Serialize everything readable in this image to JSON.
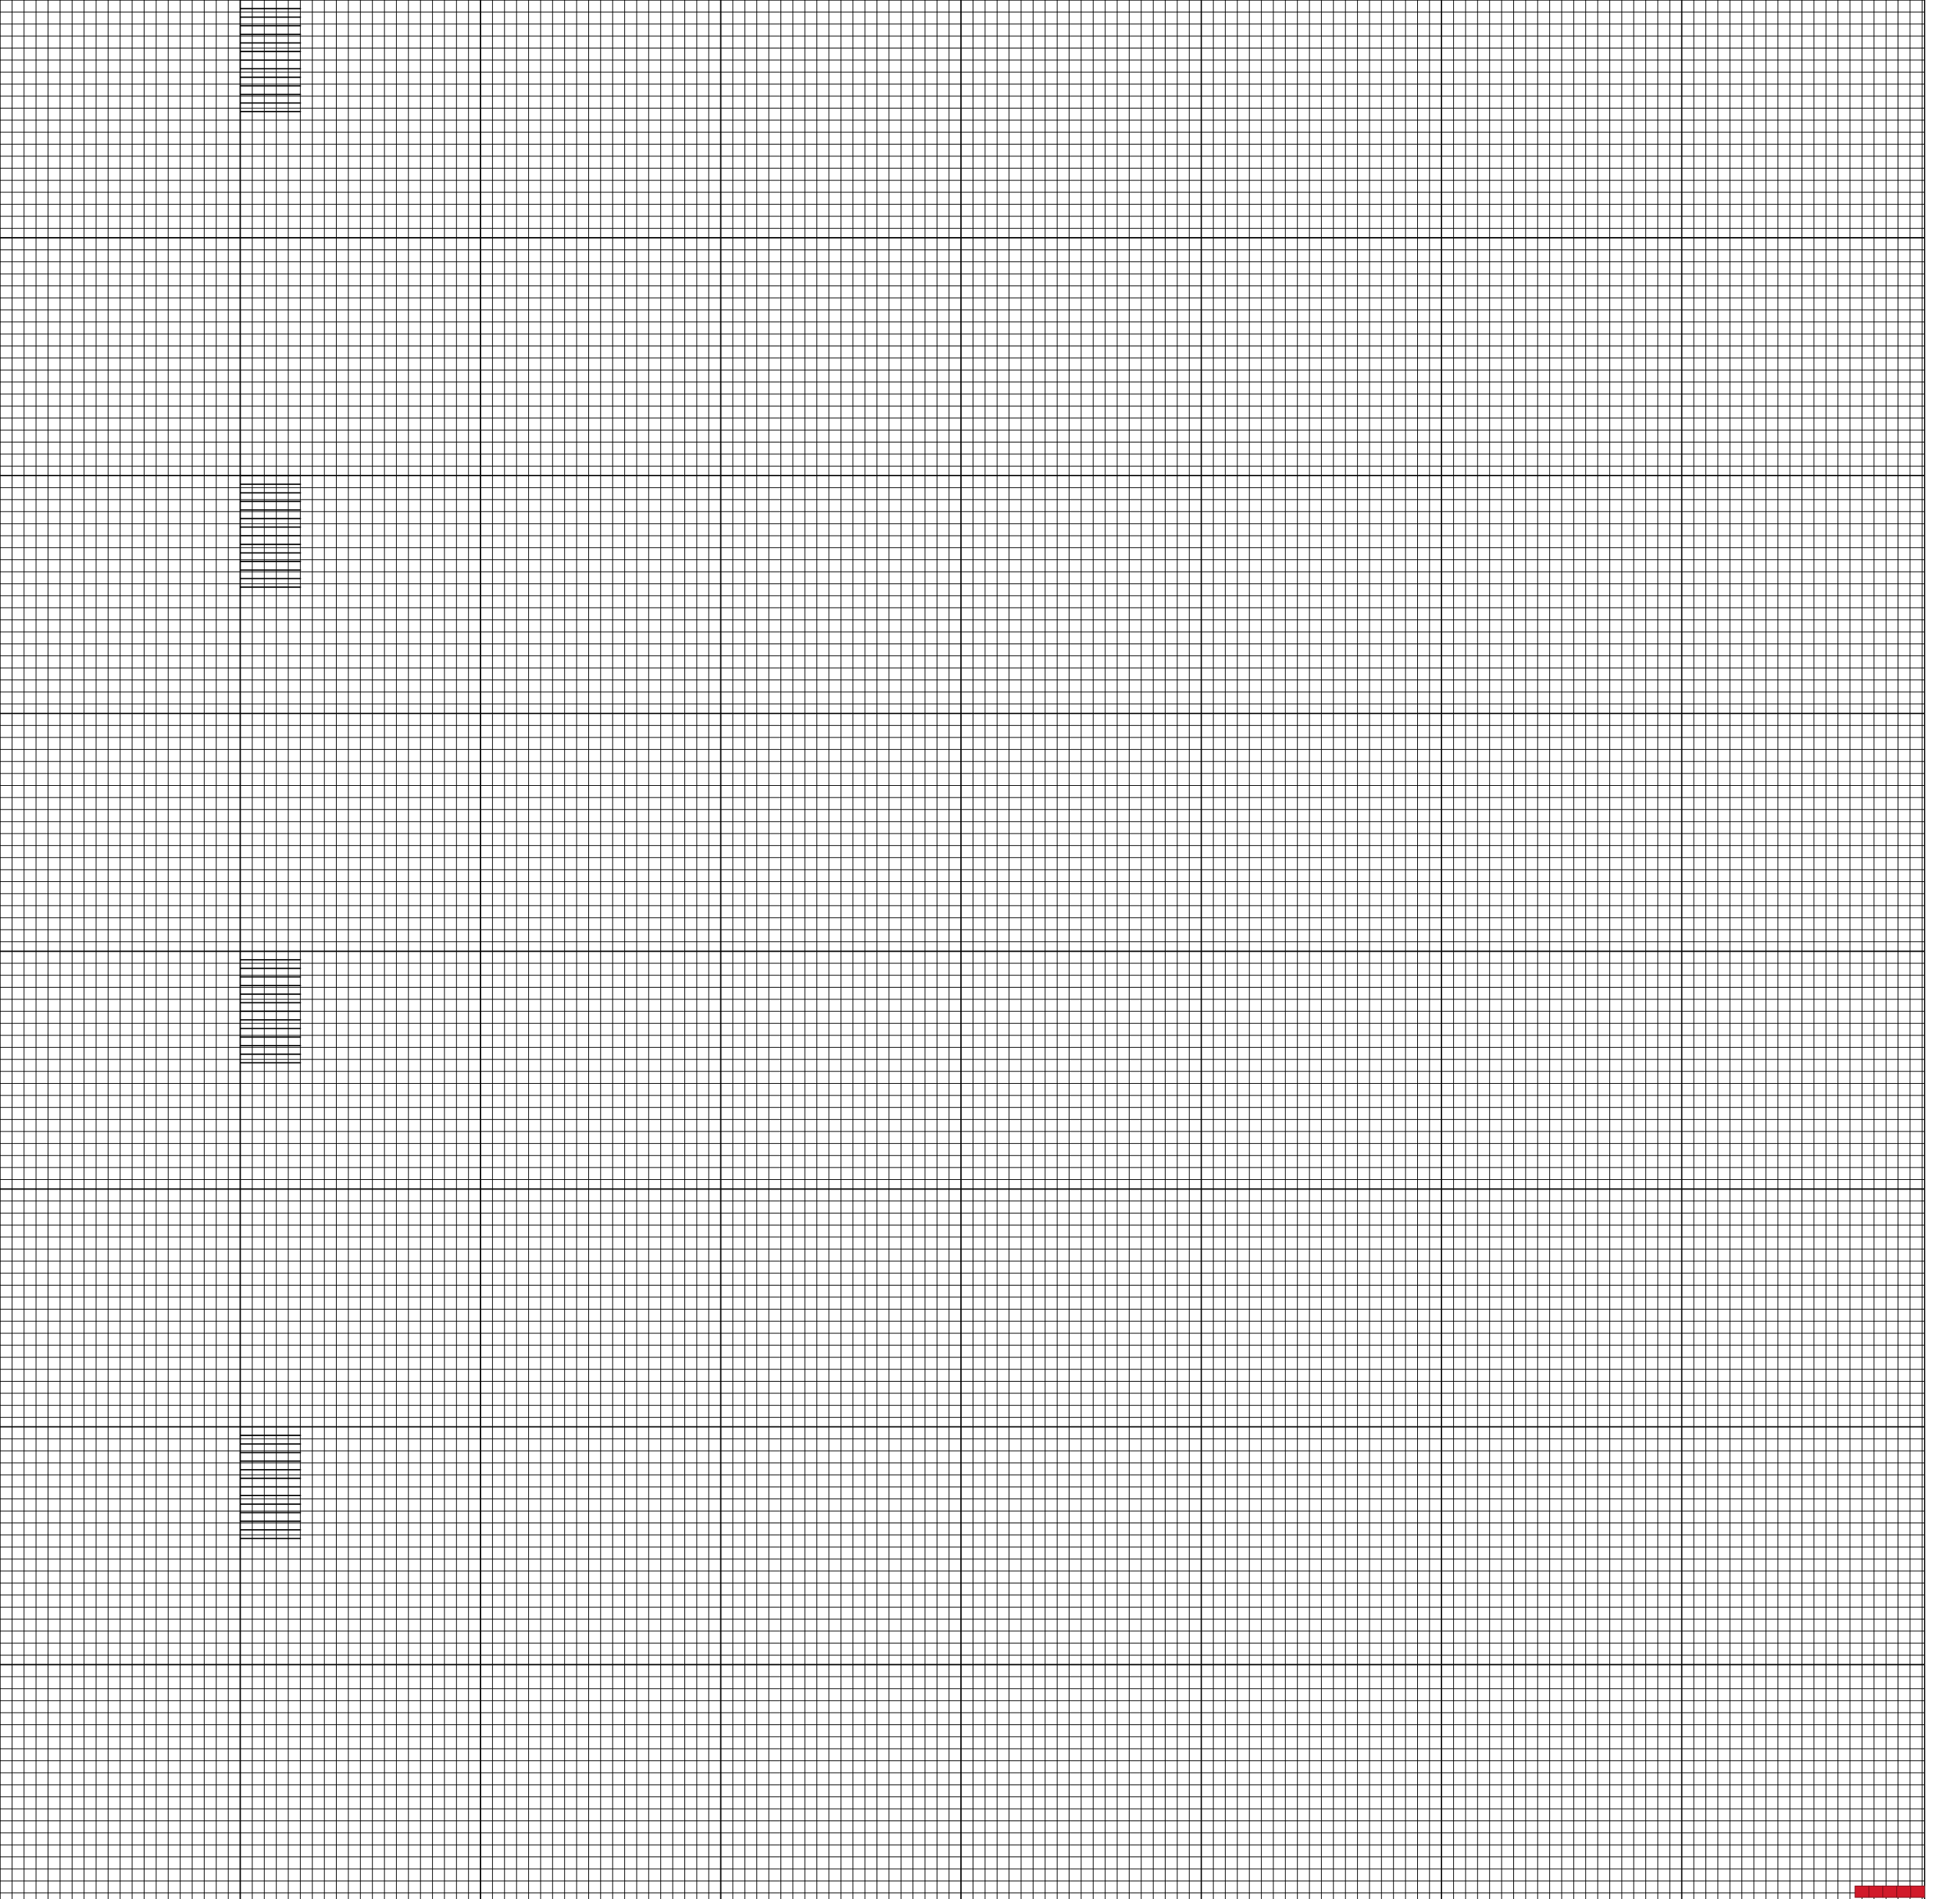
{
  "colors": {
    "background": "#ffffff",
    "grid_line": "#000000",
    "highlight": "#d11a2a"
  },
  "grid": {
    "block_rows": 8,
    "block_cols": 8,
    "blocks": [
      "top-left-block",
      "top-mid-block",
      "top-right-block",
      "middle-left-block",
      "middle-mid-block",
      "middle-right-block",
      "bottom-left-block",
      "bottom-mid-block",
      "bottom-right-block"
    ]
  },
  "highlight": {
    "icon": "red-cell-strip",
    "cell_count": 5
  }
}
